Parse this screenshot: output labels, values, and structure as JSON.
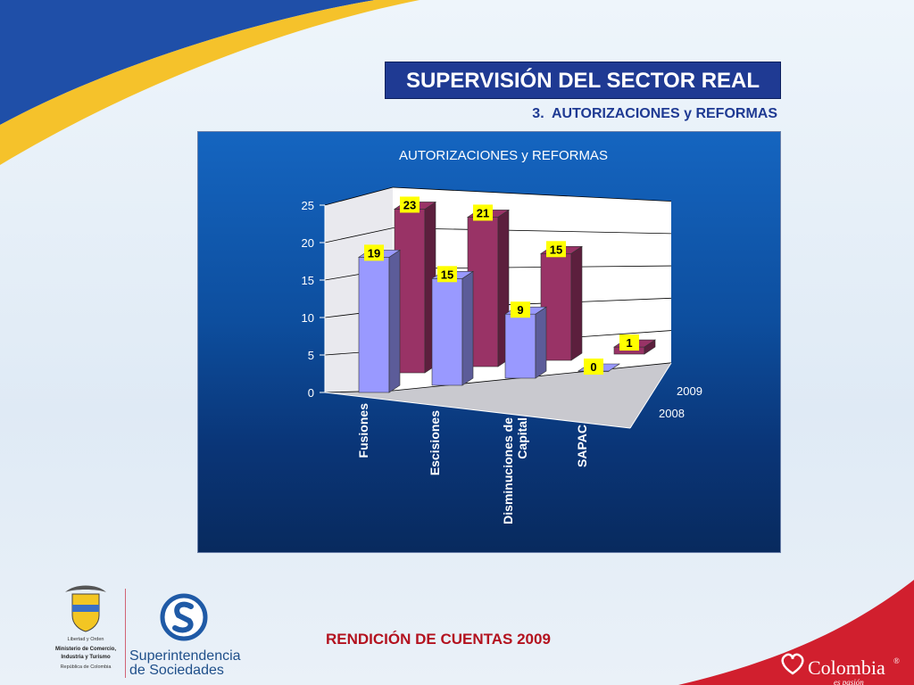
{
  "slide": {
    "title": "SUPERVISIÓN DEL SECTOR REAL",
    "subtitle": "3.  AUTORIZACIONES y REFORMAS",
    "footer": "RENDICIÓN DE CUENTAS 2009",
    "colors": {
      "title_bg": "#1f3a93",
      "footer_text": "#b3121f",
      "accent_yellow": "#f5c22b",
      "accent_blue": "#1f4fa8",
      "accent_red": "#d11f2e"
    }
  },
  "logos": {
    "mincomercio": [
      "Libertad y Orden",
      "Ministerio de Comercio,",
      "Industria y Turismo",
      "República de Colombia"
    ],
    "superintendencia": [
      "Superintendencia",
      "de Sociedades"
    ],
    "colombia": {
      "name": "Colombia",
      "mark": "®",
      "tagline": "es pasión"
    }
  },
  "chart_data": {
    "type": "bar",
    "title": "AUTORIZACIONES y REFORMAS",
    "categories": [
      "Fusiones",
      "Escisiones",
      "Disminuciones de Capital",
      "SAPAC"
    ],
    "category_labels": [
      [
        "Fusiones"
      ],
      [
        "Escisiones"
      ],
      [
        "Disminuciones de",
        "Capital"
      ],
      [
        "SAPAC"
      ]
    ],
    "series": [
      {
        "name": "2008",
        "values": [
          19,
          15,
          9,
          0
        ],
        "color": "#9999ff"
      },
      {
        "name": "2009",
        "values": [
          23,
          21,
          15,
          1
        ],
        "color": "#993366"
      }
    ],
    "ylim": [
      0,
      25
    ],
    "yticks": [
      0,
      5,
      10,
      15,
      20,
      25
    ],
    "grid": true,
    "legend": "depth-axis-right",
    "label_bg": "#ffff00"
  }
}
